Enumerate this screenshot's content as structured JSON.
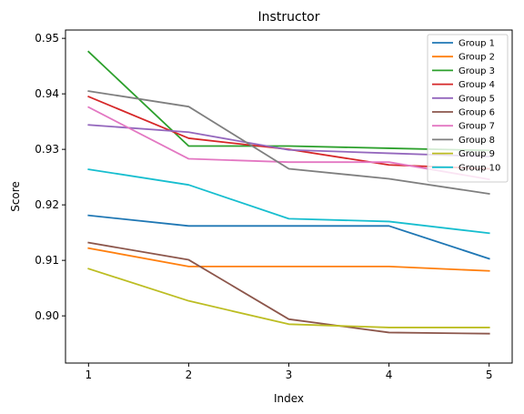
{
  "chart_data": {
    "type": "line",
    "title": "Instructor",
    "xlabel": "Index",
    "ylabel": "Score",
    "x": [
      1,
      2,
      3,
      4,
      5
    ],
    "xlim": [
      0.77,
      5.23
    ],
    "ylim": [
      0.8915,
      0.9515
    ],
    "yticks": [
      0.9,
      0.91,
      0.92,
      0.93,
      0.94,
      0.95
    ],
    "ytick_labels": [
      "0.90",
      "0.91",
      "0.92",
      "0.93",
      "0.94",
      "0.95"
    ],
    "xticks": [
      1,
      2,
      3,
      4,
      5
    ],
    "xtick_labels": [
      "1",
      "2",
      "3",
      "4",
      "5"
    ],
    "grid": false,
    "legend_position": "top-right",
    "series": [
      {
        "name": "Group 1",
        "color": "#1f77b4",
        "values": [
          0.9181,
          0.9162,
          0.9162,
          0.9162,
          0.9103
        ]
      },
      {
        "name": "Group 2",
        "color": "#ff7f0e",
        "values": [
          0.9122,
          0.9089,
          0.9089,
          0.9089,
          0.9081
        ]
      },
      {
        "name": "Group 3",
        "color": "#2ca02c",
        "values": [
          0.9476,
          0.9306,
          0.9306,
          0.9302,
          0.9298
        ]
      },
      {
        "name": "Group 4",
        "color": "#d62728",
        "values": [
          0.9395,
          0.932,
          0.93,
          0.9272,
          0.9265
        ]
      },
      {
        "name": "Group 5",
        "color": "#9467bd",
        "values": [
          0.9344,
          0.9331,
          0.9299,
          0.9293,
          0.9287
        ]
      },
      {
        "name": "Group 6",
        "color": "#8c564b",
        "values": [
          0.9132,
          0.9101,
          0.8994,
          0.897,
          0.8968
        ]
      },
      {
        "name": "Group 7",
        "color": "#e377c2",
        "values": [
          0.9376,
          0.9283,
          0.9277,
          0.9277,
          0.9246
        ]
      },
      {
        "name": "Group 8",
        "color": "#7f7f7f",
        "values": [
          0.9405,
          0.9377,
          0.9265,
          0.9247,
          0.922
        ]
      },
      {
        "name": "Group 9",
        "color": "#bcbd22",
        "values": [
          0.9085,
          0.9027,
          0.8985,
          0.8979,
          0.8979
        ]
      },
      {
        "name": "Group 10",
        "color": "#17becf",
        "values": [
          0.9264,
          0.9236,
          0.9175,
          0.917,
          0.9149
        ]
      }
    ]
  }
}
